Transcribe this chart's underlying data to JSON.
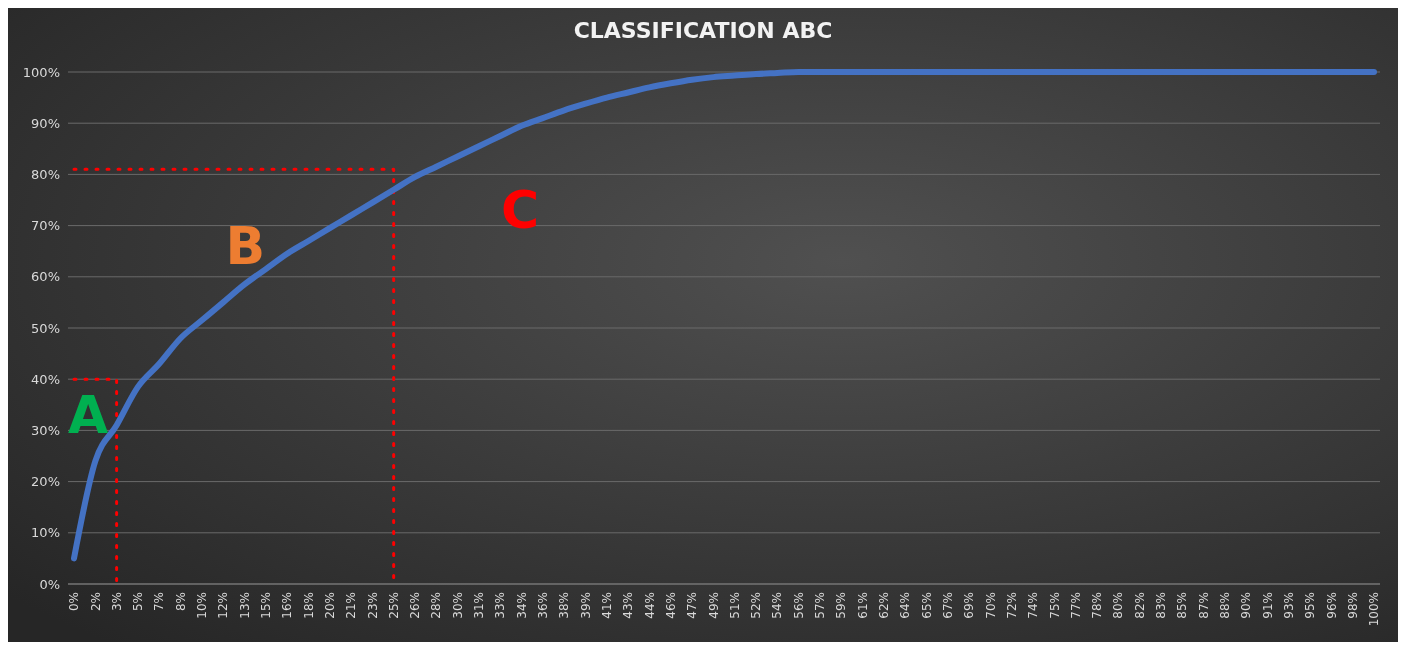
{
  "chart_data": {
    "type": "line",
    "title": "CLASSIFICATION ABC",
    "categories": [
      "0%",
      "2%",
      "3%",
      "5%",
      "7%",
      "8%",
      "10%",
      "12%",
      "13%",
      "15%",
      "16%",
      "18%",
      "20%",
      "21%",
      "23%",
      "25%",
      "26%",
      "28%",
      "30%",
      "31%",
      "33%",
      "34%",
      "36%",
      "38%",
      "39%",
      "41%",
      "43%",
      "44%",
      "46%",
      "47%",
      "49%",
      "51%",
      "52%",
      "54%",
      "56%",
      "57%",
      "59%",
      "61%",
      "62%",
      "64%",
      "65%",
      "67%",
      "69%",
      "70%",
      "72%",
      "74%",
      "75%",
      "77%",
      "78%",
      "80%",
      "82%",
      "83%",
      "85%",
      "87%",
      "88%",
      "90%",
      "91%",
      "93%",
      "95%",
      "96%",
      "98%",
      "100%"
    ],
    "series": [
      {
        "color": "#4472c4",
        "values": [
          5,
          24,
          31,
          38.5,
          43,
          48,
          51.5,
          55,
          58.5,
          61.5,
          64.5,
          67,
          69.5,
          72,
          74.5,
          77,
          79.5,
          81.5,
          83.5,
          85.5,
          87.5,
          89.5,
          91,
          92.5,
          93.8,
          95,
          96,
          97,
          97.8,
          98.5,
          99,
          99.3,
          99.6,
          99.8,
          100,
          100,
          100,
          100,
          100,
          100,
          100,
          100,
          100,
          100,
          100,
          100,
          100,
          100,
          100,
          100,
          100,
          100,
          100,
          100,
          100,
          100,
          100,
          100,
          100,
          100,
          100,
          100
        ]
      },
      {
        "color": "#ff0000",
        "line_style": "dotted",
        "x": [
          "0%",
          "3%",
          "3%"
        ],
        "values": [
          40,
          40,
          0
        ]
      },
      {
        "color": "#ff0000",
        "line_style": "dotted",
        "x": [
          "0%",
          "25%",
          "25%"
        ],
        "values": [
          81,
          81,
          0
        ]
      }
    ],
    "annotations": [
      "A",
      "B",
      "C"
    ],
    "ylim": [
      0,
      100
    ],
    "yticks": [
      {
        "value": 0,
        "label": "0%"
      },
      {
        "value": 10,
        "label": "10%"
      },
      {
        "value": 20,
        "label": "20%"
      },
      {
        "value": 30,
        "label": "30%"
      },
      {
        "value": 40,
        "label": "40%"
      },
      {
        "value": 50,
        "label": "50%"
      },
      {
        "value": 60,
        "label": "60%"
      },
      {
        "value": 70,
        "label": "70%"
      },
      {
        "value": 80,
        "label": "80%"
      },
      {
        "value": 90,
        "label": "90%"
      },
      {
        "value": 100,
        "label": "100%"
      }
    ],
    "grid": "y",
    "marker": "none",
    "line_style": "solid"
  }
}
